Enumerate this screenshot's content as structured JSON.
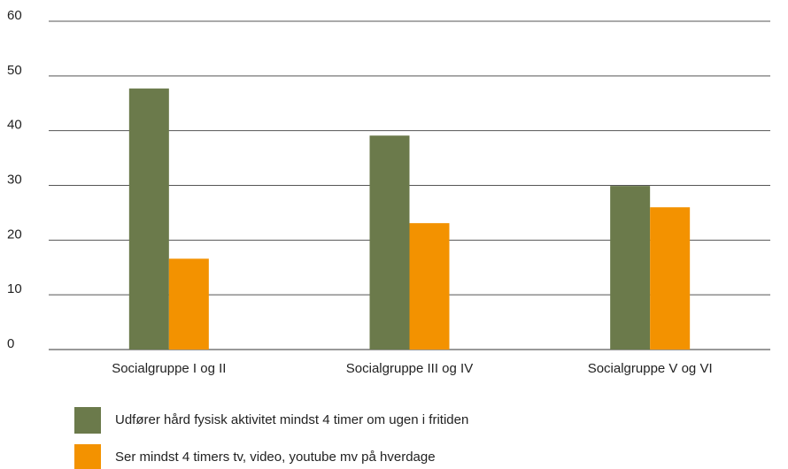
{
  "chart_data": {
    "type": "bar",
    "categories": [
      "Socialgruppe I og II",
      "Socialgruppe III og IV",
      "Socialgruppe V og VI"
    ],
    "series": [
      {
        "name": "Udfører hård fysisk aktivitet mindst 4 timer om ugen i fritiden",
        "color": "#6b7a4b",
        "values": [
          47.7,
          39.1,
          29.9
        ]
      },
      {
        "name": "Ser mindst 4 timers tv, video, youtube mv på hverdage",
        "color": "#f39200",
        "values": [
          16.6,
          23.1,
          26
        ]
      }
    ],
    "ylim": [
      0,
      60
    ],
    "yticks": [
      0,
      10,
      20,
      30,
      40,
      50,
      60
    ],
    "grid": true,
    "legend": "bottom"
  }
}
